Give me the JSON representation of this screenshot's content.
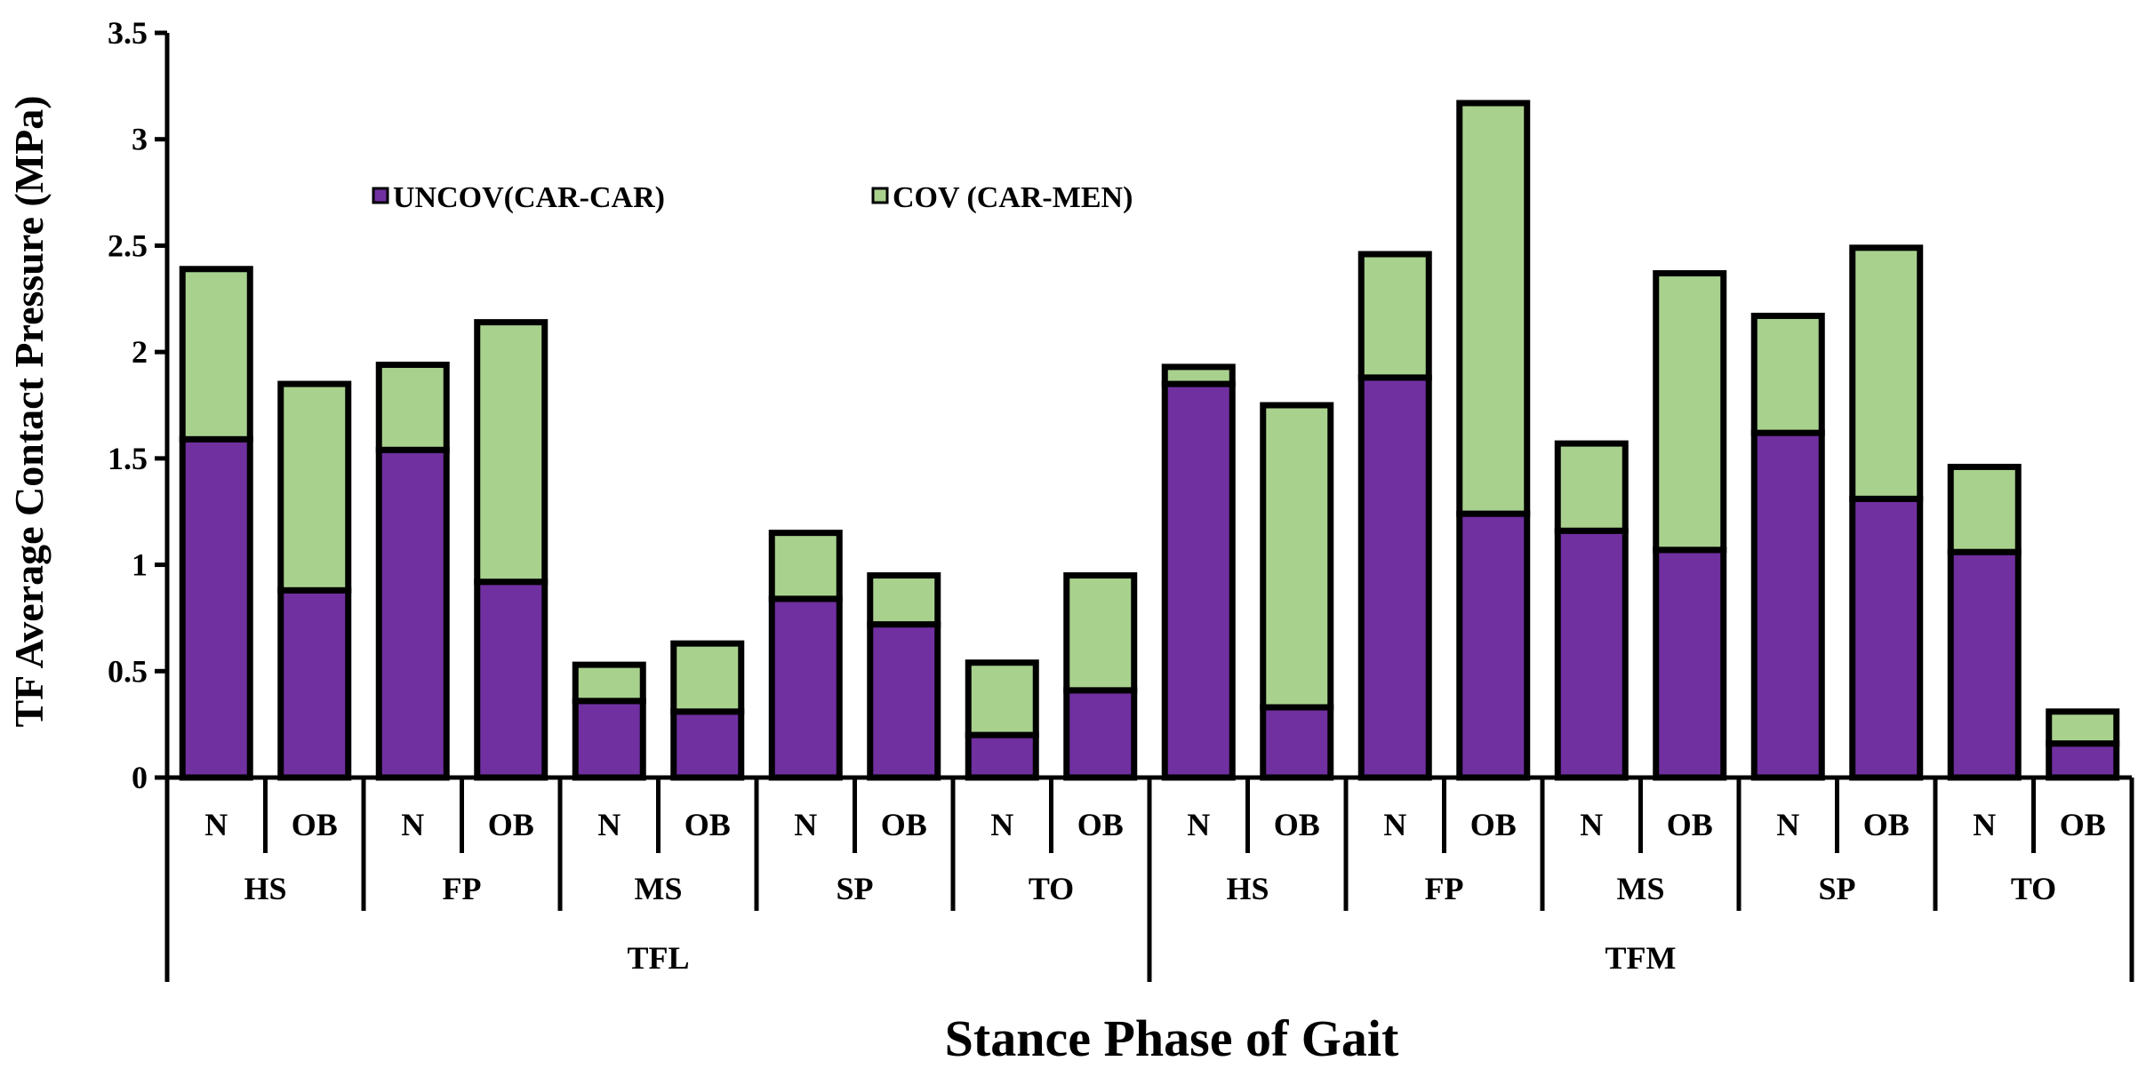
{
  "chart_data": {
    "type": "bar",
    "stacked": true,
    "title": "",
    "xlabel": "Stance Phase of Gait",
    "ylabel": "TF Average Contact  Pressure (MPa)",
    "ylim": [
      0,
      3.5
    ],
    "yticks": [
      "0",
      "0.5",
      "1",
      "1.5",
      "2",
      "2.5",
      "3",
      "3.5"
    ],
    "ytick_values": [
      0,
      0.5,
      1,
      1.5,
      2,
      2.5,
      3,
      3.5
    ],
    "legend_position": "top-left",
    "categories": [
      {
        "level1": "N",
        "level2": "HS",
        "level3": "TFL"
      },
      {
        "level1": "OB",
        "level2": "HS",
        "level3": "TFL"
      },
      {
        "level1": "N",
        "level2": "FP",
        "level3": "TFL"
      },
      {
        "level1": "OB",
        "level2": "FP",
        "level3": "TFL"
      },
      {
        "level1": "N",
        "level2": "MS",
        "level3": "TFL"
      },
      {
        "level1": "OB",
        "level2": "MS",
        "level3": "TFL"
      },
      {
        "level1": "N",
        "level2": "SP",
        "level3": "TFL"
      },
      {
        "level1": "OB",
        "level2": "SP",
        "level3": "TFL"
      },
      {
        "level1": "N",
        "level2": "TO",
        "level3": "TFL"
      },
      {
        "level1": "OB",
        "level2": "TO",
        "level3": "TFL"
      },
      {
        "level1": "N",
        "level2": "HS",
        "level3": "TFM"
      },
      {
        "level1": "OB",
        "level2": "HS",
        "level3": "TFM"
      },
      {
        "level1": "N",
        "level2": "FP",
        "level3": "TFM"
      },
      {
        "level1": "OB",
        "level2": "FP",
        "level3": "TFM"
      },
      {
        "level1": "N",
        "level2": "MS",
        "level3": "TFM"
      },
      {
        "level1": "OB",
        "level2": "MS",
        "level3": "TFM"
      },
      {
        "level1": "N",
        "level2": "SP",
        "level3": "TFM"
      },
      {
        "level1": "OB",
        "level2": "SP",
        "level3": "TFM"
      },
      {
        "level1": "N",
        "level2": "TO",
        "level3": "TFM"
      },
      {
        "level1": "OB",
        "level2": "TO",
        "level3": "TFM"
      }
    ],
    "level2_groups": [
      "HS",
      "FP",
      "MS",
      "SP",
      "TO",
      "HS",
      "FP",
      "MS",
      "SP",
      "TO"
    ],
    "level3_groups": [
      "TFL",
      "TFM"
    ],
    "series": [
      {
        "name": "UNCOV(CAR-CAR)",
        "color": "#7030a0",
        "values": [
          1.59,
          0.88,
          1.54,
          0.92,
          0.36,
          0.31,
          0.84,
          0.72,
          0.2,
          0.41,
          1.85,
          0.33,
          1.88,
          1.24,
          1.16,
          1.07,
          1.62,
          1.31,
          1.06,
          0.16
        ]
      },
      {
        "name": "COV (CAR-MEN)",
        "color": "#a9d18e",
        "values": [
          0.8,
          0.97,
          0.4,
          1.22,
          0.17,
          0.32,
          0.31,
          0.23,
          0.34,
          0.54,
          0.08,
          1.42,
          0.58,
          1.93,
          0.41,
          1.3,
          0.55,
          1.18,
          0.4,
          0.15
        ]
      }
    ]
  }
}
